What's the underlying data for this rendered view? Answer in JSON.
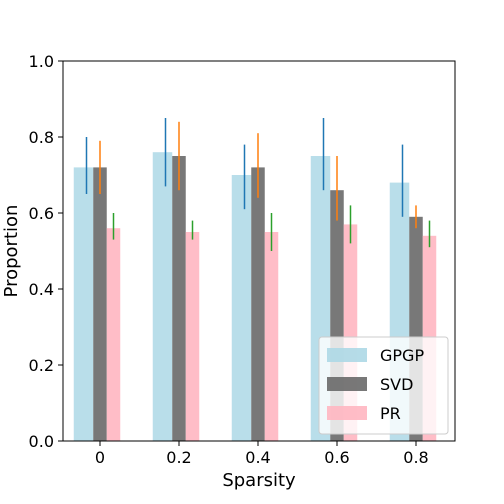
{
  "chart_data": {
    "type": "bar",
    "title": "",
    "xlabel": "Sparsity",
    "ylabel": "Proportion",
    "ylim": [
      0.0,
      1.0
    ],
    "yticks": [
      "0.0",
      "0.2",
      "0.4",
      "0.6",
      "0.8",
      "1.0"
    ],
    "categories": [
      "0",
      "0.2",
      "0.4",
      "0.6",
      "0.8"
    ],
    "grid": false,
    "legend_position": "bottom-right",
    "series": [
      {
        "name": "GPGP",
        "color": "#add8e6",
        "values": [
          0.72,
          0.76,
          0.7,
          0.75,
          0.68
        ],
        "err_low": [
          0.65,
          0.67,
          0.61,
          0.66,
          0.59
        ],
        "err_high": [
          0.8,
          0.85,
          0.78,
          0.85,
          0.78
        ],
        "err_color": "#1f77b4"
      },
      {
        "name": "SVD",
        "color": "#696969",
        "values": [
          0.72,
          0.75,
          0.72,
          0.66,
          0.59
        ],
        "err_low": [
          0.65,
          0.66,
          0.64,
          0.58,
          0.56
        ],
        "err_high": [
          0.79,
          0.84,
          0.81,
          0.75,
          0.62
        ],
        "err_color": "#ff7f0e"
      },
      {
        "name": "PR",
        "color": "#ffb6c1",
        "values": [
          0.56,
          0.55,
          0.55,
          0.57,
          0.54
        ],
        "err_low": [
          0.53,
          0.53,
          0.5,
          0.52,
          0.51
        ],
        "err_high": [
          0.6,
          0.58,
          0.6,
          0.62,
          0.58
        ],
        "err_color": "#2ca02c"
      }
    ]
  }
}
